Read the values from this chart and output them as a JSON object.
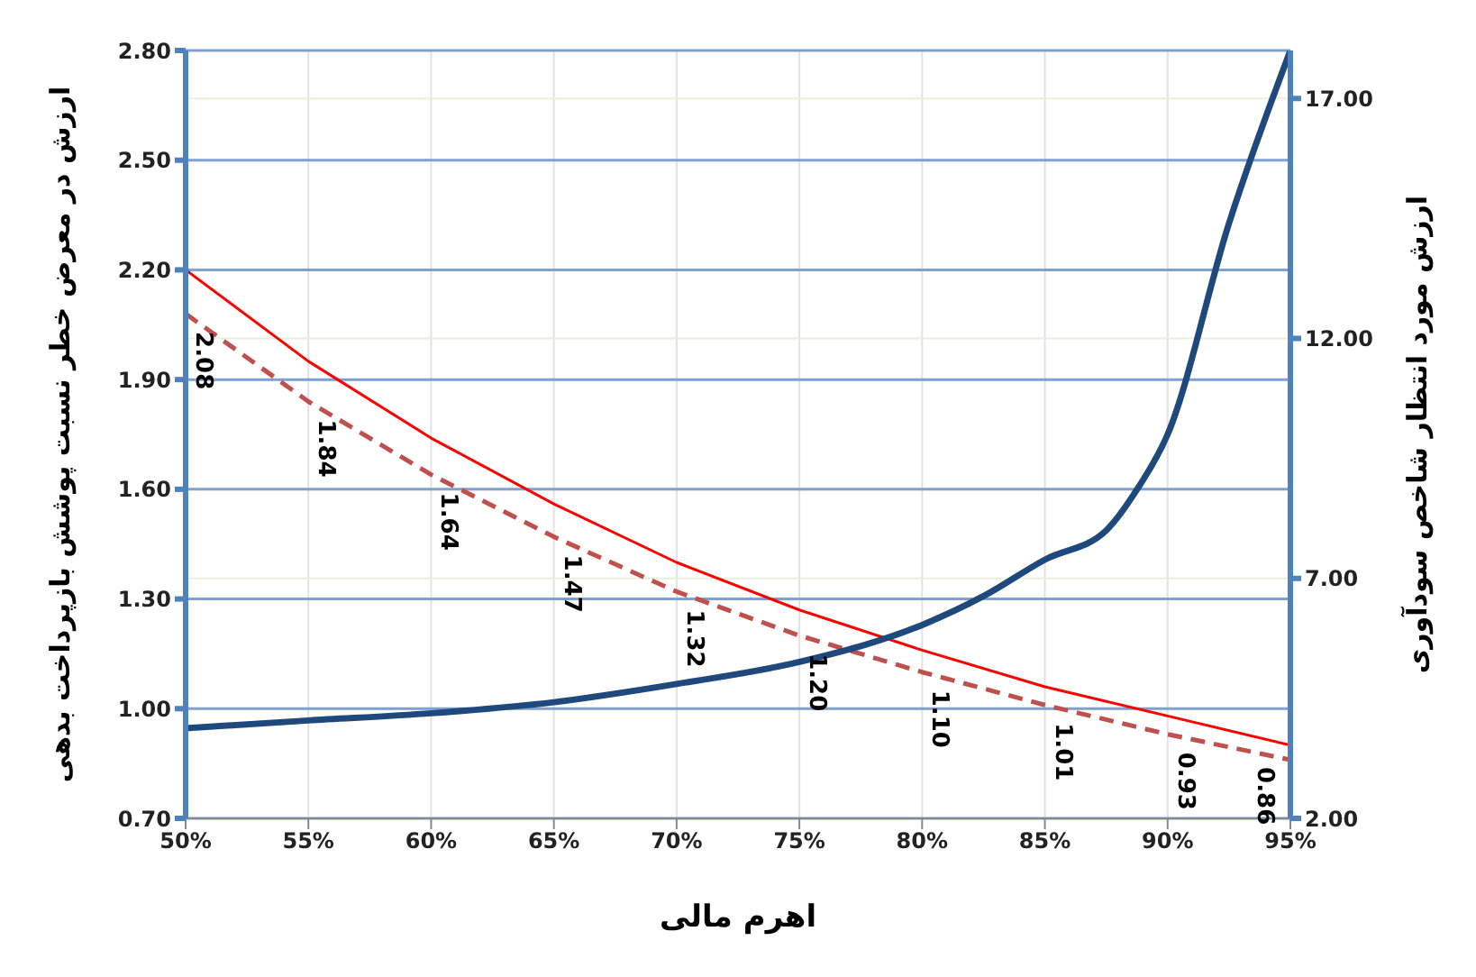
{
  "chart_data": {
    "type": "line",
    "xlabel": "اهرم مالی",
    "ylabel": "ارزش در معرض خطر نسبت پوشش بازپرداخت بدهی",
    "y2label": "ارزش مورد انتظار شاخص سودآوری",
    "x": [
      50,
      55,
      60,
      65,
      70,
      75,
      80,
      85,
      90,
      95
    ],
    "series": [
      {
        "color": "#ff0000",
        "values": [
          2.2,
          1.95,
          1.74,
          1.56,
          1.4,
          1.27,
          1.16,
          1.06,
          0.98,
          0.9
        ]
      },
      {
        "color": "#c0504d",
        "line_style": "dashed",
        "values": [
          2.08,
          1.84,
          1.64,
          1.47,
          1.32,
          1.2,
          1.1,
          1.01,
          0.93,
          0.86
        ],
        "value_labels": [
          "2.08",
          "1.84",
          "1.64",
          "1.47",
          "1.32",
          "1.20",
          "1.10",
          "1.01",
          "0.93",
          "0.86"
        ]
      },
      {
        "color": "#1f497d",
        "axis": "y2",
        "x": [
          50,
          55,
          60,
          65,
          70,
          75,
          80,
          82.5,
          85,
          87.5,
          88.75,
          90,
          92.5,
          95
        ],
        "values": [
          3.88,
          4.04,
          4.19,
          4.42,
          4.8,
          5.26,
          6.03,
          6.63,
          7.39,
          8.0,
          8.85,
          10.0,
          14.4,
          18.0
        ]
      }
    ],
    "xlim": [
      50,
      95
    ],
    "xticks": [
      {
        "value": 50,
        "label": "50%"
      },
      {
        "value": 55,
        "label": "55%"
      },
      {
        "value": 60,
        "label": "60%"
      },
      {
        "value": 65,
        "label": "65%"
      },
      {
        "value": 70,
        "label": "70%"
      },
      {
        "value": 75,
        "label": "75%"
      },
      {
        "value": 80,
        "label": "80%"
      },
      {
        "value": 85,
        "label": "85%"
      },
      {
        "value": 90,
        "label": "90%"
      },
      {
        "value": 95,
        "label": "95%"
      }
    ],
    "ylim": [
      0.7,
      2.8
    ],
    "yticks": [
      {
        "value": 0.7,
        "label": "0.70"
      },
      {
        "value": 1.0,
        "label": "1.00"
      },
      {
        "value": 1.3,
        "label": "1.30"
      },
      {
        "value": 1.6,
        "label": "1.60"
      },
      {
        "value": 1.9,
        "label": "1.90"
      },
      {
        "value": 2.2,
        "label": "2.20"
      },
      {
        "value": 2.5,
        "label": "2.50"
      },
      {
        "value": 2.8,
        "label": "2.80"
      }
    ],
    "y2lim": [
      2,
      18
    ],
    "y2ticks": [
      {
        "value": 2,
        "label": "2.00"
      },
      {
        "value": 7,
        "label": "7.00"
      },
      {
        "value": 12,
        "label": "12.00"
      },
      {
        "value": 17,
        "label": "17.00"
      }
    ],
    "grid": true,
    "marker": "none",
    "line_style": "solid"
  }
}
